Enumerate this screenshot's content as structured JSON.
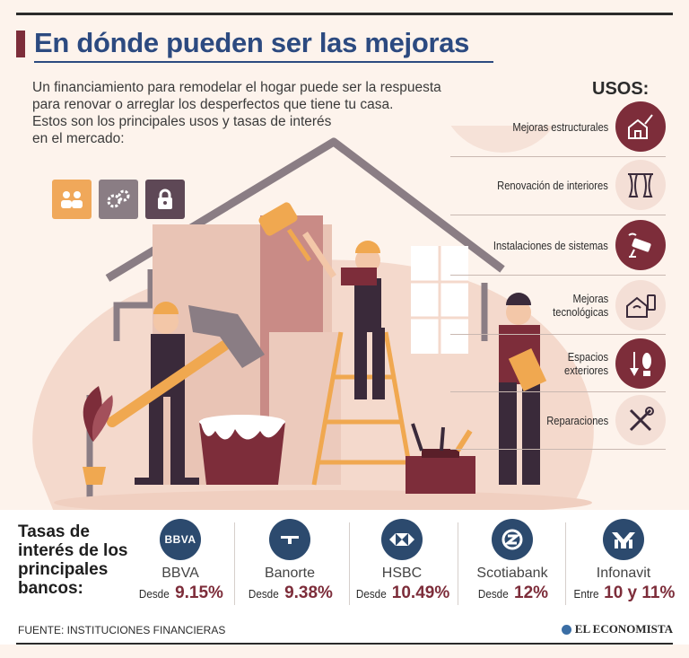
{
  "header": {
    "title": "En dónde pueden ser las mejoras"
  },
  "intro": {
    "line1": "Un financiamiento para remodelar el hogar puede ser la respuesta",
    "line2": "para renovar o arreglar los desperfectos que tiene tu casa.",
    "line3": "Estos son los principales usos y tasas de interés",
    "line4": "en el mercado:"
  },
  "usos": {
    "title": "USOS:",
    "items": [
      {
        "label": "Mejoras estructurales",
        "icon": "house-brush-icon",
        "style": "dark"
      },
      {
        "label": "Renovación de interiores",
        "icon": "curtains-icon",
        "style": "light"
      },
      {
        "label": "Instalaciones de sistemas",
        "icon": "security-camera-icon",
        "style": "dark"
      },
      {
        "label_line1": "Mejoras",
        "label_line2": "tecnológicas",
        "icon": "smart-home-icon",
        "style": "light"
      },
      {
        "label_line1": "Espacios",
        "label_line2": "exteriores",
        "icon": "garden-tools-icon",
        "style": "dark"
      },
      {
        "label": "Reparaciones",
        "icon": "wrench-screwdriver-icon",
        "style": "light"
      }
    ]
  },
  "rates": {
    "title_line1": "Tasas de",
    "title_line2": "interés de los",
    "title_line3": "principales",
    "title_line4": "bancos:",
    "banks": [
      {
        "name": "BBVA",
        "prefix": "Desde",
        "value": "9.15%",
        "logo_text": "BBVA"
      },
      {
        "name": "Banorte",
        "prefix": "Desde",
        "value": "9.38%"
      },
      {
        "name": "HSBC",
        "prefix": "Desde",
        "value": "10.49%"
      },
      {
        "name": "Scotiabank",
        "prefix": "Desde",
        "value": "12%"
      },
      {
        "name": "Infonavit",
        "prefix": "Entre",
        "value": "10 y 11%"
      }
    ]
  },
  "footer": {
    "source": "FUENTE: INSTITUCIONES FINANCIERAS",
    "brand": "EL ECONOMISTA"
  },
  "colors": {
    "accent": "#7d2d3a",
    "title_blue": "#2c4a80",
    "bank_blue": "#2c4a6e",
    "background": "#fdf3ec"
  }
}
